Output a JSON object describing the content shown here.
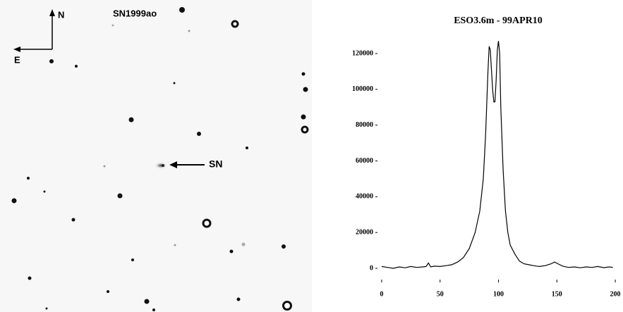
{
  "image": {
    "title": "SN1999ao",
    "north": "N",
    "east": "E",
    "target": "SN"
  },
  "chart_data": {
    "type": "line",
    "title": "ESO3.6m - 99APR10",
    "x": [
      0,
      5,
      10,
      15,
      20,
      25,
      30,
      35,
      38,
      40,
      42,
      45,
      50,
      55,
      60,
      65,
      70,
      75,
      80,
      84,
      87,
      89,
      91,
      92,
      93,
      95,
      96,
      97,
      98,
      99,
      100,
      101,
      102,
      104,
      106,
      108,
      110,
      114,
      118,
      122,
      126,
      130,
      135,
      140,
      145,
      148,
      151,
      155,
      160,
      165,
      170,
      175,
      180,
      185,
      190,
      195,
      198
    ],
    "series": [
      {
        "color": "#000000",
        "values": [
          1000,
          500,
          0,
          800,
          300,
          1000,
          500,
          800,
          1000,
          3000,
          800,
          1200,
          1000,
          1500,
          2000,
          3500,
          6000,
          11000,
          20000,
          32000,
          50000,
          75000,
          110000,
          124000,
          122000,
          100000,
          93000,
          93000,
          105000,
          122000,
          127000,
          120000,
          90000,
          55000,
          32000,
          20000,
          13000,
          8000,
          4000,
          2500,
          2000,
          1500,
          1000,
          1500,
          2500,
          3500,
          2500,
          1200,
          500,
          800,
          300,
          800,
          500,
          1000,
          400,
          800,
          500
        ]
      }
    ],
    "xlim": [
      -3.6,
      204.8
    ],
    "ylim": [
      -6300,
      131800
    ],
    "xticks": [
      0,
      50,
      100,
      150,
      200
    ],
    "yticks": [
      0,
      20000,
      40000,
      60000,
      80000,
      100000,
      120000
    ]
  }
}
